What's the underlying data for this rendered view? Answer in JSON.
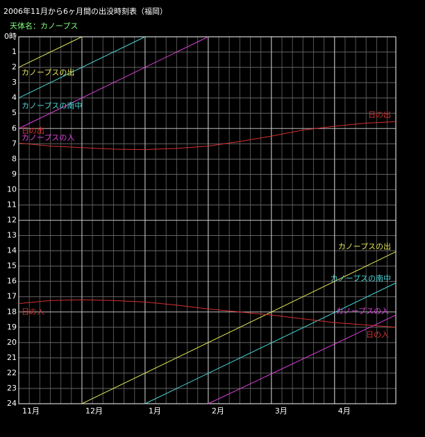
{
  "chart_data": {
    "type": "line",
    "title": "2006年11月から6ヶ月間の出没時刻表（福岡）",
    "subtitle": "天体名：カノープス",
    "xlim": [
      0,
      5.97
    ],
    "xticks": [
      {
        "value": 0,
        "label": "11月"
      },
      {
        "value": 1,
        "label": "12月"
      },
      {
        "value": 2,
        "label": "1月"
      },
      {
        "value": 3,
        "label": "2月"
      },
      {
        "value": 4,
        "label": "3月"
      },
      {
        "value": 5,
        "label": "4月"
      }
    ],
    "ylim": [
      0,
      24
    ],
    "yticks": [
      {
        "value": 0,
        "label": "0時"
      },
      1,
      2,
      3,
      4,
      5,
      6,
      7,
      8,
      9,
      10,
      11,
      12,
      13,
      14,
      15,
      16,
      17,
      18,
      19,
      20,
      21,
      22,
      23,
      24
    ],
    "grid": true,
    "series": [
      {
        "name": "カノープスの出",
        "color": "#e6e65a",
        "x": [
          0,
          1,
          null,
          1,
          5.97
        ],
        "values": [
          2,
          0,
          null,
          24,
          14.06
        ]
      },
      {
        "name": "カノープスの南中",
        "color": "#4ad8d8",
        "x": [
          0,
          2,
          null,
          2,
          5.97
        ],
        "values": [
          4,
          0,
          null,
          24,
          16.1
        ]
      },
      {
        "name": "カノープスの入",
        "color": "#e040e0",
        "x": [
          0,
          3,
          null,
          3,
          5.97
        ],
        "values": [
          6,
          0,
          null,
          24,
          18.2
        ]
      },
      {
        "name": "日の出",
        "color": "#d83030",
        "x": [
          0,
          0.5,
          1,
          1.5,
          2,
          2.5,
          3,
          3.5,
          4,
          4.5,
          5,
          5.5,
          5.97
        ],
        "values": [
          6.95,
          7.15,
          7.25,
          7.35,
          7.38,
          7.3,
          7.15,
          6.85,
          6.5,
          6.1,
          5.85,
          5.65,
          5.55
        ]
      },
      {
        "name": "日の入",
        "color": "#d83030",
        "x": [
          0,
          0.5,
          1,
          1.5,
          2,
          2.5,
          3,
          3.5,
          4,
          4.5,
          5,
          5.5,
          5.97
        ],
        "values": [
          17.45,
          17.25,
          17.2,
          17.25,
          17.35,
          17.55,
          17.8,
          18.0,
          18.2,
          18.45,
          18.7,
          18.85,
          19.0
        ]
      }
    ]
  }
}
